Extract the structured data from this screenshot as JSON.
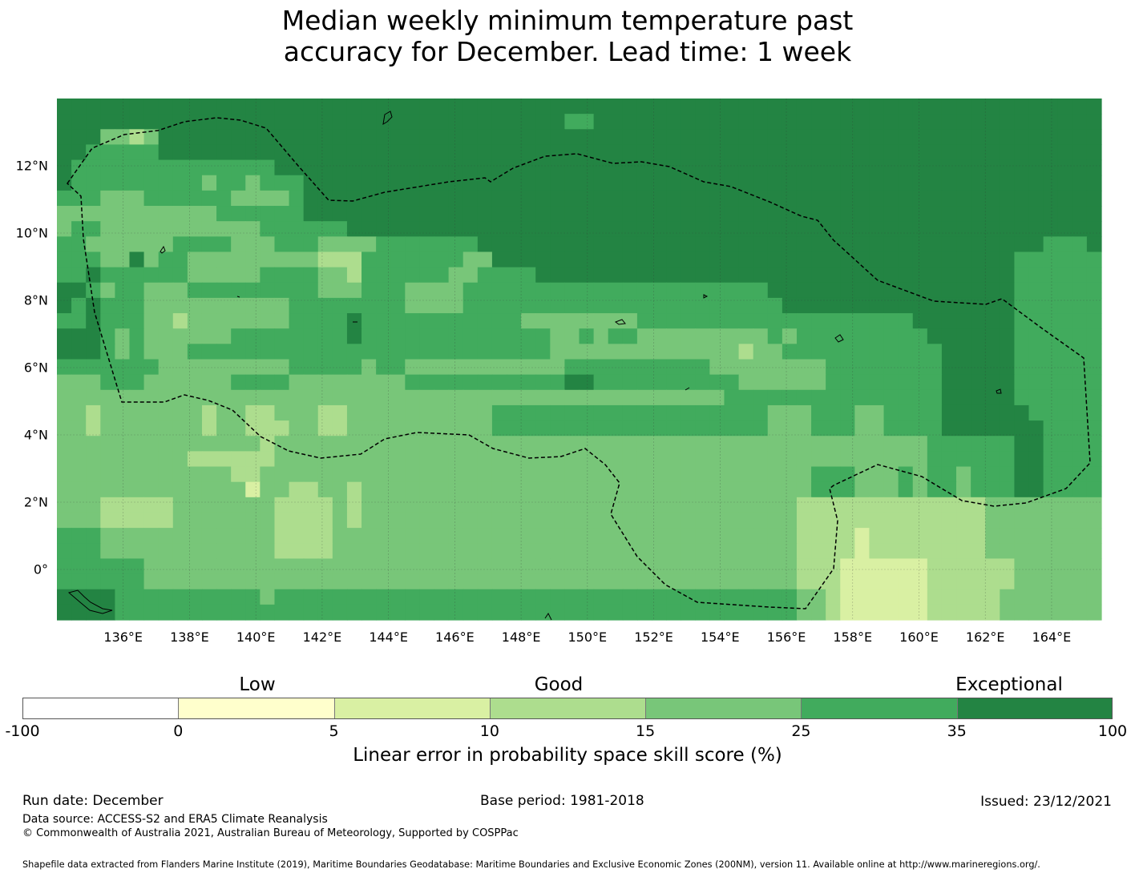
{
  "title_line1": "Median weekly minimum temperature past",
  "title_line2": "accuracy for December. Lead time: 1 week",
  "map": {
    "x_ticks": [
      "136°E",
      "138°E",
      "140°E",
      "142°E",
      "144°E",
      "146°E",
      "148°E",
      "150°E",
      "152°E",
      "154°E",
      "156°E",
      "158°E",
      "160°E",
      "162°E",
      "164°E"
    ],
    "y_ticks": [
      "12°N",
      "10°N",
      "8°N",
      "6°N",
      "4°N",
      "2°N",
      "0°"
    ],
    "lon_range": [
      134,
      165.5
    ],
    "lat_range": [
      -1.5,
      14
    ],
    "palette": [
      "#ffffff",
      "#ffffcc",
      "#d9f0a3",
      "#addd8e",
      "#78c679",
      "#41ab5d",
      "#238443"
    ],
    "rows_north_to_south": [
      "666666666666666666666666666666666666666666666666666666666666666666666666",
      "666666666666666666666666666666666665566666666666666666666666666666666666",
      "666443466666666666666666666666666666666666666666666666666666666666666666",
      "665555566666666666666666666666666666666666666666666666666666666666666666",
      "655555555555555666666666666666666666666666666666666666666666666666666666",
      "655555555545545556666666666666666666666666666666666666666666666666666666",
      "555444555555444456666666666666666666666666666666666666666666666666666666",
      "444444444445555556666666666666666666666666666666666666666666666666666666",
      "455444444444445555556666666666666666666666666666666666666666666666666666",
      "554444445555444555444455555556666666666666666666666666666666666666665556",
      "555446455444444444333555555544666666666666666666666666666666666666555555",
      "556555555444445555443555555445555666666666666666666666666666666666555555",
      "665455444555555555444555444455555555555555555555566666666666666666555555",
      "656555444444444455555555444455555555555555555555556666666666666666555555",
      "556555443444444455556555555555554444444455555555555555555556666666555555",
      "666545444444555555556555555555555544545544444444454555555555666666555555",
      "666545444555555555555555555555555544444444444443445555555555566666555555",
      "555555544444444455555455444444444445555555555444444445555555566666555555",
      "444555444444555544444444555555555556655555555554444445555555566666555555",
      "444444444444444444444444444444444444444444444455555555555555566666555555",
      "443444444434433444334444444444555555555555555555544455544555566666655555",
      "443444444434433344334444444444555555555555555555544455544555566666665555",
      "444444444444443444444444444444444444444444444444444444444444555555665555",
      "444444444333333444444444444444444444444444444444444444444444555555665555",
      "444444444444334444444444444444444444444444444444444455544454554555665555",
      "444444444444424433443444444444444444444444444444444455544454554555665555",
      "444333334444444333343444444444444444444444444444444333333333333344444444",
      "444333334444444333343444444444444444444444444444444333333333333344444444",
      "555444444444444333344444444444444444444444444444444333323333333344444444",
      "555444444444444333344444444444444444444444444444444333323333333344444444",
      "555555444444444444444444444444444444444444444444444333222222333333444444",
      "555555444444444444444444444444444444444444444444444333222222333333444444",
      "666655555555554555555555555555555555555555555555555443222222333334444444",
      "666655555555555555555555555555555555555555555555555443222222333334444444"
    ]
  },
  "colorbar": {
    "labels": {
      "low": "Low",
      "good": "Good",
      "exceptional": "Exceptional"
    },
    "ticks": [
      "-100",
      "0",
      "5",
      "10",
      "15",
      "25",
      "35",
      "100"
    ],
    "colors": [
      "#ffffff",
      "#ffffcc",
      "#d9f0a3",
      "#addd8e",
      "#78c679",
      "#41ab5d",
      "#238443"
    ],
    "axis_label": "Linear error in probability space skill score (%)"
  },
  "footer": {
    "run_date": "Run date: December",
    "base_period": "Base period: 1981-2018",
    "issued": "Issued: 23/12/2021",
    "data_source": "Data source: ACCESS-S2 and ERA5 Climate Reanalysis",
    "copyright": "© Commonwealth of Australia 2021, Australian Bureau of Meteorology, Supported by COSPPac",
    "shapefile": "Shapefile data extracted from Flanders Marine Institute (2019), Maritime Boundaries Geodatabase: Maritime Boundaries and Exclusive Economic Zones (200NM), version 11. Available online at http://www.marineregions.org/."
  }
}
